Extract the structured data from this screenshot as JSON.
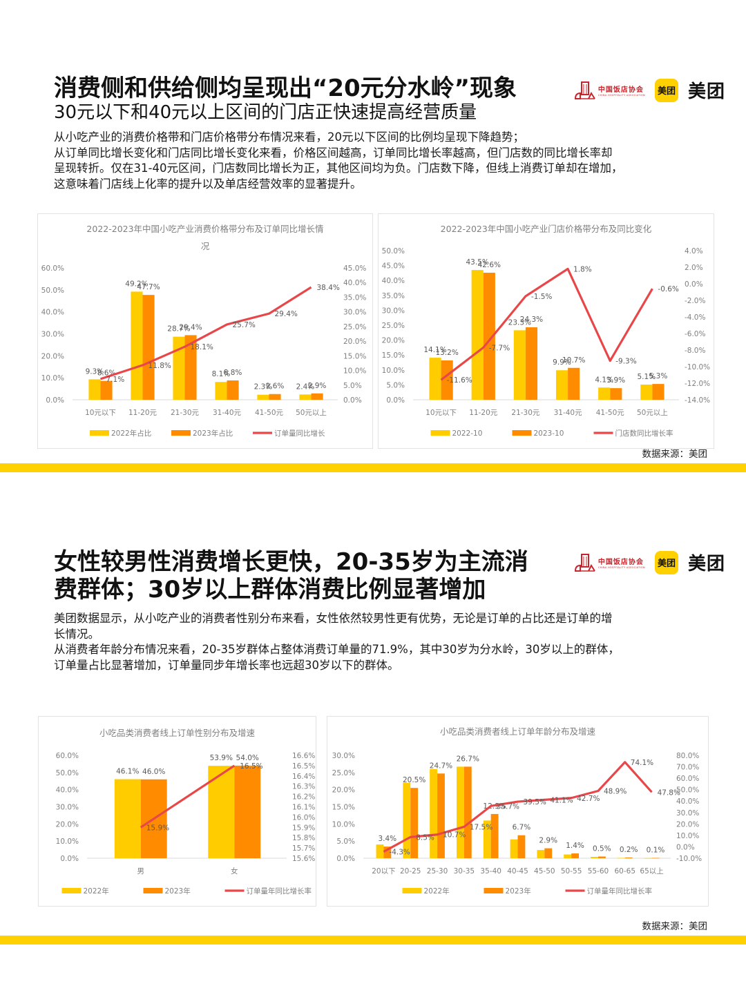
{
  "colors": {
    "yellow": "#FFD100",
    "bar2022": "#FFCC00",
    "bar2023": "#FF8C00",
    "line": "#E8474A",
    "axis_text": "#7f7f7f",
    "band": "#FFD100"
  },
  "logos": {
    "cha_cn": "中国饭店协会",
    "cha_en": "CHINA HOSPITALITY ASSOCIATION",
    "meituan_badge": "美团",
    "meituan_word": "美团"
  },
  "section1": {
    "headline": "消费侧和供给侧均呈现出“20元分水岭”现象",
    "subline": "30元以下和40元以上区间的门店正快速提高经营质量",
    "paragraph": [
      "从小吃产业的消费价格带和门店价格带分布情况来看，20元以下区间的比例均呈现下降趋势；",
      "从订单同比增长变化和门店同比增长变化来看，价格区间越高，订单同比增长率越高，但门店数的同比增长率却",
      "呈现转折。仅在31-40元区间，门店数同比增长为正，其他区间均为负。门店数下降，但线上消费订单却在增加，",
      "这意味着门店线上化率的提升以及单店经营效率的显著提升。"
    ],
    "source": "数据来源：美团"
  },
  "section2": {
    "headline_line1": "女性较男性消费增长更快，20-35岁为主流消",
    "headline_line2": "费群体；30岁以上群体消费比例显著增加",
    "paragraph": [
      "美团数据显示，从小吃产业的消费者性别分布来看，女性依然较男性更有优势，无论是订单的占比还是订单的增",
      "长情况。",
      "从消费者年龄分布情况来看，20-35岁群体占整体消费订单量的71.9%，其中30岁为分水岭，30岁以上的群体，",
      "订单量占比显著增加，订单量同步年增长率也远超30岁以下的群体。"
    ],
    "source": "数据来源：美团"
  },
  "chart_data": [
    {
      "id": "price_band_consumption",
      "type": "bar",
      "title": "2022-2023年中国小吃产业消费价格带分布及订单同比增长情况",
      "title_lines": [
        "2022-2023年中国小吃产业消费价格带分布及订单同比增长情",
        "况"
      ],
      "categories": [
        "10元以下",
        "11-20元",
        "21-30元",
        "31-40元",
        "41-50元",
        "50元以上"
      ],
      "series": [
        {
          "name": "2022年占比",
          "type": "bar",
          "axis": "left",
          "values": [
            9.3,
            49.2,
            28.7,
            8.1,
            2.3,
            2.4
          ],
          "labels": [
            "9.3%",
            "49.2%",
            "28.7%",
            "8.1%",
            "2.3%",
            "2.4%"
          ]
        },
        {
          "name": "2023年占比",
          "type": "bar",
          "axis": "left",
          "values": [
            8.6,
            47.7,
            29.4,
            8.8,
            2.6,
            2.9
          ],
          "labels": [
            "8.6%",
            "47.7%",
            "29.4%",
            "8.8%",
            "2.6%",
            "2.9%"
          ]
        },
        {
          "name": "订单量同比增长",
          "type": "line",
          "axis": "right",
          "values": [
            7.1,
            11.8,
            18.1,
            25.7,
            29.4,
            38.4
          ],
          "labels": [
            "7.1%",
            "11.8%",
            "18.1%",
            "25.7%",
            "29.4%",
            "38.4%"
          ]
        }
      ],
      "left_axis": {
        "min": 0,
        "max": 60,
        "step": 10,
        "ticks": [
          "0.0%",
          "10.0%",
          "20.0%",
          "30.0%",
          "40.0%",
          "50.0%",
          "60.0%"
        ]
      },
      "right_axis": {
        "min": 0,
        "max": 45,
        "step": 5,
        "ticks": [
          "0.0%",
          "5.0%",
          "10.0%",
          "15.0%",
          "20.0%",
          "25.0%",
          "30.0%",
          "35.0%",
          "40.0%",
          "45.0%"
        ]
      },
      "legend_position": "bottom",
      "grid": false
    },
    {
      "id": "price_band_stores",
      "type": "bar",
      "title": "2022-2023年中国小吃产业门店价格带分布及同比变化",
      "title_lines": [
        "2022-2023年中国小吃产业门店价格带分布及同比变化"
      ],
      "categories": [
        "10元以下",
        "11-20元",
        "21-30元",
        "31-40元",
        "41-50元",
        "50元以上"
      ],
      "series": [
        {
          "name": "2022-10",
          "type": "bar",
          "axis": "left",
          "values": [
            14.1,
            43.5,
            23.3,
            9.9,
            4.1,
            5.1
          ],
          "labels": [
            "14.1%",
            "43.5%",
            "23.3%",
            "9.9%",
            "4.1%",
            "5.1%"
          ]
        },
        {
          "name": "2023-10",
          "type": "bar",
          "axis": "left",
          "values": [
            13.2,
            42.6,
            24.3,
            10.7,
            3.9,
            5.3
          ],
          "labels": [
            "13.2%",
            "42.6%",
            "24.3%",
            "10.7%",
            "3.9%",
            "5.3%"
          ]
        },
        {
          "name": "门店数同比增长率",
          "type": "line",
          "axis": "right",
          "values": [
            -11.6,
            -7.7,
            -1.5,
            1.8,
            -9.3,
            -0.6
          ],
          "labels": [
            "-11.6%",
            "-7.7%",
            "-1.5%",
            "1.8%",
            "-9.3%",
            "-0.6%"
          ]
        }
      ],
      "left_axis": {
        "min": 0,
        "max": 50,
        "step": 5,
        "ticks": [
          "0.0%",
          "5.0%",
          "10.0%",
          "15.0%",
          "20.0%",
          "25.0%",
          "30.0%",
          "35.0%",
          "40.0%",
          "45.0%",
          "50.0%"
        ]
      },
      "right_axis": {
        "min": -14,
        "max": 4,
        "step": 2,
        "ticks": [
          "-14.0%",
          "-12.0%",
          "-10.0%",
          "-8.0%",
          "-6.0%",
          "-4.0%",
          "-2.0%",
          "0.0%",
          "2.0%",
          "4.0%"
        ]
      },
      "legend_position": "bottom",
      "grid": false
    },
    {
      "id": "gender_orders",
      "type": "bar",
      "title": "小吃品类消费者线上订单性别分布及增速",
      "title_lines": [
        "小吃品类消费者线上订单性别分布及增速"
      ],
      "categories": [
        "男",
        "女"
      ],
      "series": [
        {
          "name": "2022年",
          "type": "bar",
          "axis": "left",
          "values": [
            46.1,
            53.9
          ],
          "labels": [
            "46.1%",
            "53.9%"
          ]
        },
        {
          "name": "2023年",
          "type": "bar",
          "axis": "left",
          "values": [
            46.0,
            54.0
          ],
          "labels": [
            "46.0%",
            "54.0%"
          ]
        },
        {
          "name": "订单量年同比增长率",
          "type": "line",
          "axis": "right",
          "values": [
            15.9,
            16.5
          ],
          "labels": [
            "15.9%",
            "16.5%"
          ]
        }
      ],
      "left_axis": {
        "min": 0,
        "max": 60,
        "step": 10,
        "ticks": [
          "0.0%",
          "10.0%",
          "20.0%",
          "30.0%",
          "40.0%",
          "50.0%",
          "60.0%"
        ]
      },
      "right_axis": {
        "min": 15.6,
        "max": 16.6,
        "step": 0.1,
        "ticks": [
          "15.6%",
          "15.7%",
          "15.8%",
          "15.9%",
          "16.0%",
          "16.1%",
          "16.2%",
          "16.3%",
          "16.4%",
          "16.5%",
          "16.6%"
        ]
      },
      "legend_position": "bottom",
      "grid": false
    },
    {
      "id": "age_orders",
      "type": "bar",
      "title": "小吃品类消费者线上订单年龄分布及增速",
      "title_lines": [
        "小吃品类消费者线上订单年龄分布及增速"
      ],
      "categories": [
        "20以下",
        "20-25",
        "25-30",
        "30-35",
        "35-40",
        "40-45",
        "45-50",
        "50-55",
        "55-60",
        "60-65",
        "65以上"
      ],
      "series": [
        {
          "name": "2022年",
          "type": "bar",
          "axis": "left",
          "values": [
            4.0,
            22.0,
            26.0,
            26.7,
            11.0,
            5.5,
            2.4,
            1.1,
            0.4,
            0.1,
            0.05
          ],
          "labels": [
            "",
            "",
            "",
            "",
            "",
            "",
            "",
            "",
            "",
            "",
            ""
          ]
        },
        {
          "name": "2023年",
          "type": "bar",
          "axis": "left",
          "values": [
            3.4,
            20.5,
            24.7,
            26.7,
            12.9,
            6.7,
            2.9,
            1.4,
            0.5,
            0.2,
            0.1
          ],
          "labels": [
            "3.4%",
            "20.5%",
            "24.7%",
            "26.7%",
            "12.9%",
            "6.7%",
            "2.9%",
            "1.4%",
            "0.5%",
            "0.2%",
            "0.1%"
          ]
        },
        {
          "name": "订单量年同比增长率",
          "type": "line",
          "axis": "right",
          "values": [
            -4.3,
            8.5,
            10.7,
            17.5,
            35.7,
            39.5,
            41.1,
            42.7,
            48.9,
            74.1,
            47.8
          ],
          "labels": [
            "-4.3%",
            "8.5%",
            "10.7%",
            "17.5%",
            "35.7%",
            "39.5%",
            "41.1%",
            "42.7%",
            "48.9%",
            "74.1%",
            "47.8%"
          ]
        }
      ],
      "left_axis": {
        "min": 0,
        "max": 30,
        "step": 5,
        "ticks": [
          "0.0%",
          "5.0%",
          "10.0%",
          "15.0%",
          "20.0%",
          "25.0%",
          "30.0%"
        ]
      },
      "right_axis": {
        "min": -10,
        "max": 80,
        "step": 10,
        "ticks": [
          "-10.0%",
          "0.0%",
          "10.0%",
          "20.0%",
          "30.0%",
          "40.0%",
          "50.0%",
          "60.0%",
          "70.0%",
          "80.0%"
        ]
      },
      "legend_position": "bottom",
      "grid": false
    }
  ]
}
